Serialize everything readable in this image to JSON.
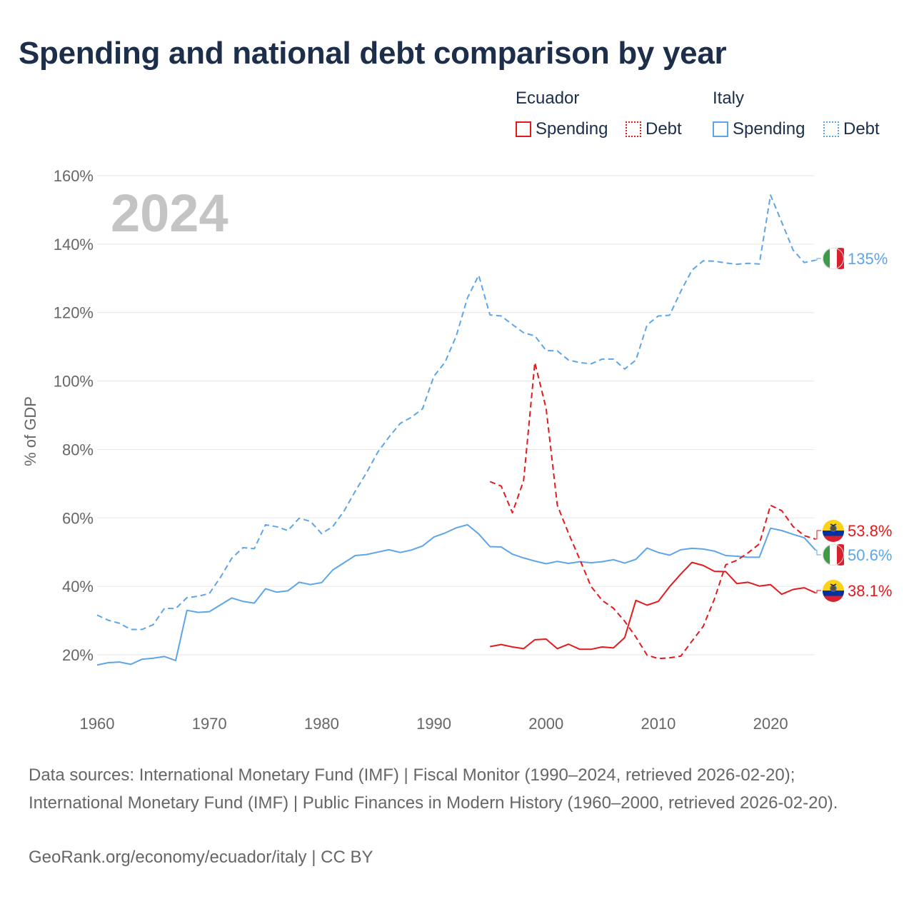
{
  "title": "Spending and national debt comparison by year",
  "legend": {
    "groups": [
      {
        "name": "Ecuador",
        "items": [
          "Spending",
          "Debt"
        ]
      },
      {
        "name": "Italy",
        "items": [
          "Spending",
          "Debt"
        ]
      }
    ]
  },
  "colors": {
    "ecuador": "#e31a1c",
    "italy": "#5da5e8",
    "grid": "#e6e6e6",
    "year_watermark": "#c4c4c4"
  },
  "chart_data": {
    "type": "line",
    "year_label": "2024",
    "ylabel": "% of GDP",
    "xlim": [
      1960,
      2024
    ],
    "ylim": [
      10,
      160
    ],
    "x_ticks": [
      1960,
      1970,
      1980,
      1990,
      2000,
      2010,
      2020
    ],
    "y_ticks": [
      20,
      40,
      60,
      80,
      100,
      120,
      140,
      160
    ],
    "y_tick_labels": [
      "20%",
      "40%",
      "60%",
      "80%",
      "100%",
      "120%",
      "140%",
      "160%"
    ],
    "series": [
      {
        "name": "Italy Spending",
        "country": "Italy",
        "metric": "Spending",
        "style": "solid",
        "color": "#5da5e8",
        "x": [
          1960,
          1961,
          1962,
          1963,
          1964,
          1965,
          1966,
          1967,
          1968,
          1969,
          1970,
          1971,
          1972,
          1973,
          1974,
          1975,
          1976,
          1977,
          1978,
          1979,
          1980,
          1981,
          1982,
          1983,
          1984,
          1985,
          1986,
          1987,
          1988,
          1989,
          1990,
          1991,
          1992,
          1993,
          1994,
          1995,
          1996,
          1997,
          1998,
          1999,
          2000,
          2001,
          2002,
          2003,
          2004,
          2005,
          2006,
          2007,
          2008,
          2009,
          2010,
          2011,
          2012,
          2013,
          2014,
          2015,
          2016,
          2017,
          2018,
          2019,
          2020,
          2021,
          2022,
          2023,
          2024
        ],
        "values": [
          17.0,
          17.7,
          17.9,
          17.2,
          18.7,
          19.0,
          19.5,
          18.3,
          33.0,
          32.4,
          32.6,
          34.6,
          36.6,
          35.6,
          35.1,
          39.3,
          38.3,
          38.7,
          41.2,
          40.5,
          41.1,
          44.8,
          46.9,
          49.0,
          49.3,
          50.0,
          50.7,
          49.9,
          50.6,
          51.8,
          54.4,
          55.6,
          57.1,
          58.0,
          55.3,
          51.6,
          51.5,
          49.4,
          48.3,
          47.4,
          46.6,
          47.3,
          46.7,
          47.2,
          46.9,
          47.2,
          47.8,
          46.8,
          47.9,
          51.2,
          49.9,
          49.1,
          50.7,
          51.1,
          50.9,
          50.3,
          49.0,
          48.8,
          48.5,
          48.5,
          57.0,
          56.3,
          55.2,
          54.2,
          50.6
        ],
        "end_label": "50.6%"
      },
      {
        "name": "Italy Debt",
        "country": "Italy",
        "metric": "Debt",
        "style": "dashed",
        "color": "#5da5e8",
        "x": [
          1960,
          1961,
          1962,
          1963,
          1964,
          1965,
          1966,
          1967,
          1968,
          1969,
          1970,
          1971,
          1972,
          1973,
          1974,
          1975,
          1976,
          1977,
          1978,
          1979,
          1980,
          1981,
          1982,
          1983,
          1984,
          1985,
          1986,
          1987,
          1988,
          1989,
          1990,
          1991,
          1992,
          1993,
          1994,
          1995,
          1996,
          1997,
          1998,
          1999,
          2000,
          2001,
          2002,
          2003,
          2004,
          2005,
          2006,
          2007,
          2008,
          2009,
          2010,
          2011,
          2012,
          2013,
          2014,
          2015,
          2016,
          2017,
          2018,
          2019,
          2020,
          2021,
          2022,
          2023,
          2024
        ],
        "values": [
          31.6,
          30.1,
          29.2,
          27.4,
          27.4,
          28.8,
          33.6,
          33.5,
          36.7,
          37.1,
          37.9,
          42.7,
          48.2,
          51.3,
          51.0,
          58.0,
          57.4,
          56.3,
          59.9,
          59.0,
          55.4,
          57.5,
          62.0,
          67.8,
          73.2,
          79.2,
          83.6,
          87.6,
          89.4,
          91.9,
          101.4,
          105.5,
          113.2,
          124.3,
          130.9,
          119.3,
          119.0,
          116.5,
          114.1,
          113.2,
          108.9,
          108.8,
          106.1,
          105.4,
          105.0,
          106.4,
          106.4,
          103.5,
          106.1,
          116.4,
          119.0,
          119.2,
          126.2,
          132.4,
          135.1,
          135.0,
          134.5,
          134.1,
          134.4,
          134.2,
          154.3,
          146.4,
          138.3,
          134.6,
          135.3
        ],
        "end_label": "135%"
      },
      {
        "name": "Ecuador Spending",
        "country": "Ecuador",
        "metric": "Spending",
        "style": "solid",
        "color": "#e31a1c",
        "x": [
          1995,
          1996,
          1997,
          1998,
          1999,
          2000,
          2001,
          2002,
          2003,
          2004,
          2005,
          2006,
          2007,
          2008,
          2009,
          2010,
          2011,
          2012,
          2013,
          2014,
          2015,
          2016,
          2017,
          2018,
          2019,
          2020,
          2021,
          2022,
          2023,
          2024
        ],
        "values": [
          22.4,
          23.0,
          22.3,
          21.8,
          24.4,
          24.6,
          21.8,
          23.1,
          21.6,
          21.6,
          22.3,
          22.0,
          25.0,
          35.9,
          34.5,
          35.6,
          39.9,
          43.6,
          47.0,
          46.1,
          44.4,
          44.3,
          40.8,
          41.2,
          40.1,
          40.5,
          37.7,
          39.1,
          39.6,
          38.1
        ],
        "end_label": "38.1%"
      },
      {
        "name": "Ecuador Debt",
        "country": "Ecuador",
        "metric": "Debt",
        "style": "dashed",
        "color": "#e31a1c",
        "x": [
          1995,
          1996,
          1997,
          1998,
          1999,
          2000,
          2001,
          2002,
          2003,
          2004,
          2005,
          2006,
          2007,
          2008,
          2009,
          2010,
          2011,
          2012,
          2013,
          2014,
          2015,
          2016,
          2017,
          2018,
          2019,
          2020,
          2021,
          2022,
          2023,
          2024
        ],
        "values": [
          70.6,
          69.3,
          61.5,
          70.9,
          105.4,
          92.0,
          63.7,
          55.5,
          47.9,
          40.0,
          35.9,
          33.6,
          29.8,
          25.2,
          19.9,
          18.9,
          19.1,
          19.6,
          24.0,
          28.3,
          36.3,
          46.3,
          47.6,
          49.8,
          52.4,
          63.7,
          62.1,
          57.5,
          54.8,
          53.8
        ],
        "end_label": "53.8%"
      }
    ]
  },
  "footer": {
    "sources": "Data sources: International Monetary Fund (IMF) | Fiscal Monitor (1990–2024, retrieved 2026-02-20); International Monetary Fund (IMF) | Public Finances in Modern History (1960–2000, retrieved 2026-02-20).",
    "credit": "GeoRank.org/economy/ecuador/italy | CC BY"
  }
}
